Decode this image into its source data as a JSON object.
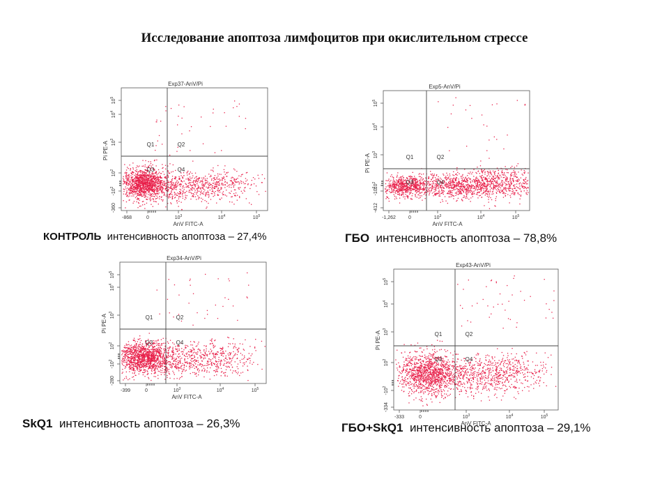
{
  "title": "Исследование апоптоза лимфоцитов при окислительном стрессе",
  "colors": {
    "dots": "#e8204a",
    "axis": "#555555",
    "quad": "#444444",
    "text": "#333333"
  },
  "chart_data": [
    {
      "type": "scatter",
      "exp": "Exp37-AnV/Pi",
      "xlabel": "AnV FITC-A",
      "ylabel": "Pi PE-A",
      "quadrants": [
        "Q1",
        "Q2",
        "Q3",
        "Q4"
      ],
      "x_ticks": [
        "-868",
        "0",
        "10^3",
        "10^4",
        "10^5"
      ],
      "y_ticks": [
        "-360",
        "-10^2",
        "10^2",
        "10^3",
        "10^4",
        "10^5"
      ],
      "caption_bold": "КОНТРОЛЬ",
      "caption_rest": "интенсивность апоптоза – 27,4%"
    },
    {
      "type": "scatter",
      "exp": "Exp5-AnV/Pi",
      "xlabel": "AnV FITC-A",
      "ylabel": "Pi PE-A",
      "quadrants": [
        "Q1",
        "Q2",
        "Q3",
        "Q4"
      ],
      "x_ticks": [
        "-1,262",
        "0",
        "10^3",
        "10^4",
        "10^5"
      ],
      "y_ticks": [
        "-412",
        "-10^2",
        "10^2",
        "10^3",
        "10^4",
        "10^5"
      ],
      "caption_bold": "ГБО",
      "caption_rest": "интенсивность апоптоза – 78,8%"
    },
    {
      "type": "scatter",
      "exp": "Exp34-AnV/Pi",
      "xlabel": "AnV FITC-A",
      "ylabel": "Pi PE-A",
      "quadrants": [
        "Q1",
        "Q2",
        "Q3",
        "Q4"
      ],
      "x_ticks": [
        "-399",
        "0",
        "10^3",
        "10^4",
        "10^5"
      ],
      "y_ticks": [
        "-280",
        "-10^2",
        "10^2",
        "10^3",
        "10^4",
        "10^5"
      ],
      "caption_bold": "SkQ1",
      "caption_rest": "интенсивность апоптоза – 26,3%"
    },
    {
      "type": "scatter",
      "exp": "Exp43-AnV/Pi",
      "xlabel": "AnV FITC-A",
      "ylabel": "Pi PE-A",
      "quadrants": [
        "Q1",
        "Q2",
        "Q3",
        "Q4"
      ],
      "x_ticks": [
        "-333",
        "0",
        "10^3",
        "10^4",
        "10^5"
      ],
      "y_ticks": [
        "-334",
        "-10^2",
        "10^2",
        "10^3",
        "10^4",
        "10^5"
      ],
      "caption_bold": "ГБО+SkQ1",
      "caption_rest": "интенсивность апоптоза – 29,1%"
    }
  ]
}
